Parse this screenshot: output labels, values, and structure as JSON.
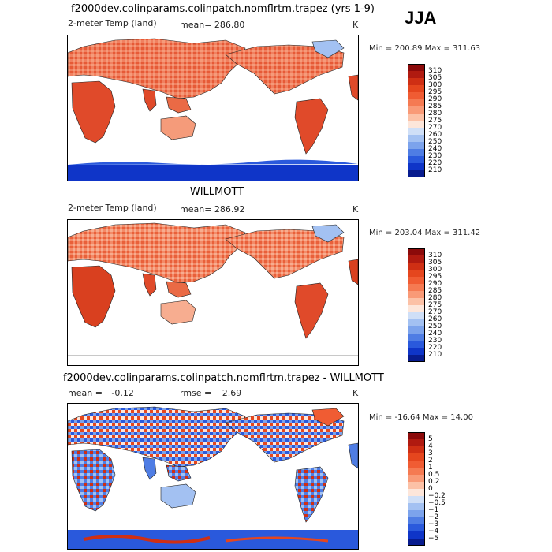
{
  "season": "JJA",
  "chart_data": [
    {
      "type": "heatmap",
      "title": "f2000dev.colinparams.colinpatch.nomflrtm.trapez (yrs 1-9)",
      "variable": "2-meter Temp (land)",
      "mean_label": "mean=",
      "mean": "286.80",
      "units": "K",
      "min_max": "Min = 200.89 Max = 311.63",
      "min": 200.89,
      "max": 311.63,
      "colorbar_levels": [
        "310",
        "305",
        "300",
        "295",
        "290",
        "285",
        "280",
        "275",
        "270",
        "260",
        "250",
        "240",
        "230",
        "220",
        "210"
      ],
      "colorbar_colors": [
        "#8b0a0a",
        "#b01a10",
        "#cf2f14",
        "#e5461e",
        "#f05c33",
        "#f57a52",
        "#f99a77",
        "#fcc1a6",
        "#fde6da",
        "#cfdff7",
        "#a3c1f2",
        "#7ca3ec",
        "#4f7de4",
        "#2a59dc",
        "#0f35c8",
        "#081c8f"
      ]
    },
    {
      "type": "heatmap",
      "title": "WILLMOTT",
      "variable": "2-meter Temp (land)",
      "mean_label": "mean=",
      "mean": "286.92",
      "units": "K",
      "min_max": "Min = 203.04 Max = 311.42",
      "min": 203.04,
      "max": 311.42,
      "colorbar_levels": [
        "310",
        "305",
        "300",
        "295",
        "290",
        "285",
        "280",
        "275",
        "270",
        "260",
        "250",
        "240",
        "230",
        "220",
        "210"
      ],
      "colorbar_colors": [
        "#8b0a0a",
        "#b01a10",
        "#cf2f14",
        "#e5461e",
        "#f05c33",
        "#f57a52",
        "#f99a77",
        "#fcc1a6",
        "#fde6da",
        "#cfdff7",
        "#a3c1f2",
        "#7ca3ec",
        "#4f7de4",
        "#2a59dc",
        "#0f35c8",
        "#081c8f"
      ]
    },
    {
      "type": "heatmap",
      "title": "f2000dev.colinparams.colinpatch.nomflrtm.trapez - WILLMOTT",
      "mean_label": "mean =",
      "mean": "-0.12",
      "rmse_label": "rmse =",
      "rmse": "2.69",
      "units": "K",
      "min_max": "Min = -16.64 Max =   14.00",
      "min": -16.64,
      "max": 14.0,
      "colorbar_levels": [
        "5",
        "4",
        "3",
        "2",
        "1",
        "0.5",
        "0.2",
        "0",
        "−0.2",
        "−0.5",
        "−1",
        "−2",
        "−3",
        "−4",
        "−5"
      ],
      "colorbar_colors": [
        "#8b0a0a",
        "#b01a10",
        "#cf2f14",
        "#e5461e",
        "#f05c33",
        "#f57a52",
        "#f99a77",
        "#fcc1a6",
        "#fde6da",
        "#cfdff7",
        "#a3c1f2",
        "#7ca3ec",
        "#4f7de4",
        "#2a59dc",
        "#0f35c8",
        "#081c8f"
      ]
    }
  ]
}
